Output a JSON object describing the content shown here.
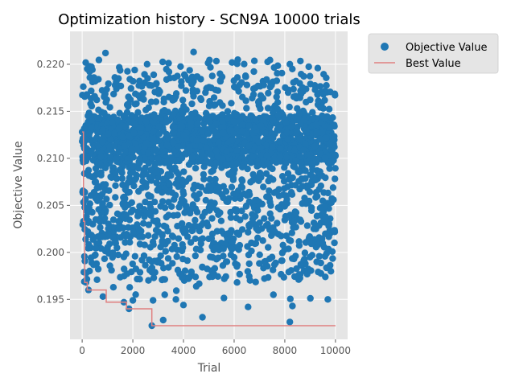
{
  "chart_data": {
    "type": "scatter",
    "title": "Optimization history - SCN9A 10000 trials",
    "xlabel": "Trial",
    "ylabel": "Objective Value",
    "xlim": [
      -480,
      10480
    ],
    "ylim": [
      0.19075,
      0.2235
    ],
    "x_ticks": [
      0,
      2000,
      4000,
      6000,
      8000,
      10000
    ],
    "y_ticks": [
      0.195,
      0.2,
      0.205,
      0.21,
      0.215,
      0.22
    ],
    "x_tick_labels": [
      "0",
      "2000",
      "4000",
      "6000",
      "8000",
      "10000"
    ],
    "y_tick_labels": [
      "0.195",
      "0.200",
      "0.205",
      "0.210",
      "0.215",
      "0.220"
    ],
    "grid": true,
    "style": "ggplot",
    "legend_position": "outside-right-top",
    "series": [
      {
        "name": "Objective Value",
        "kind": "scatter",
        "color": "#1f77b4",
        "n_points": 10000,
        "bands": [
          {
            "y_range": [
              0.2095,
              0.2145
            ],
            "share": 0.54
          },
          {
            "y_range": [
              0.2005,
              0.2095
            ],
            "share": 0.27
          },
          {
            "y_range": [
              0.2145,
              0.219
            ],
            "share": 0.1
          },
          {
            "y_range": [
              0.197,
              0.2005
            ],
            "share": 0.07
          },
          {
            "y_range": [
              0.219,
              0.2205
            ],
            "share": 0.015
          },
          {
            "y_range": [
              0.195,
              0.197
            ],
            "share": 0.005
          }
        ],
        "notable_points": [
          {
            "x": 0,
            "y": 0.2128
          },
          {
            "x": 50,
            "y": 0.2033
          },
          {
            "x": 150,
            "y": 0.1968
          },
          {
            "x": 250,
            "y": 0.196
          },
          {
            "x": 820,
            "y": 0.1953
          },
          {
            "x": 920,
            "y": 0.2212
          },
          {
            "x": 1650,
            "y": 0.1947
          },
          {
            "x": 1850,
            "y": 0.194
          },
          {
            "x": 2000,
            "y": 0.1949
          },
          {
            "x": 2750,
            "y": 0.1922
          },
          {
            "x": 2800,
            "y": 0.1949
          },
          {
            "x": 3200,
            "y": 0.1928
          },
          {
            "x": 3700,
            "y": 0.195
          },
          {
            "x": 4000,
            "y": 0.1944
          },
          {
            "x": 4400,
            "y": 0.2213
          },
          {
            "x": 4750,
            "y": 0.1931
          },
          {
            "x": 6550,
            "y": 0.1942
          },
          {
            "x": 7550,
            "y": 0.1955
          },
          {
            "x": 8200,
            "y": 0.1926
          },
          {
            "x": 8300,
            "y": 0.1943
          },
          {
            "x": 9700,
            "y": 0.195
          }
        ]
      },
      {
        "name": "Best Value",
        "kind": "step",
        "color": "#e08080",
        "points": [
          {
            "x": 0,
            "y": 0.2128
          },
          {
            "x": 50,
            "y": 0.2033
          },
          {
            "x": 100,
            "y": 0.1968
          },
          {
            "x": 200,
            "y": 0.196
          },
          {
            "x": 950,
            "y": 0.1947
          },
          {
            "x": 1750,
            "y": 0.194
          },
          {
            "x": 2750,
            "y": 0.1922
          },
          {
            "x": 10000,
            "y": 0.1922
          }
        ]
      }
    ]
  }
}
